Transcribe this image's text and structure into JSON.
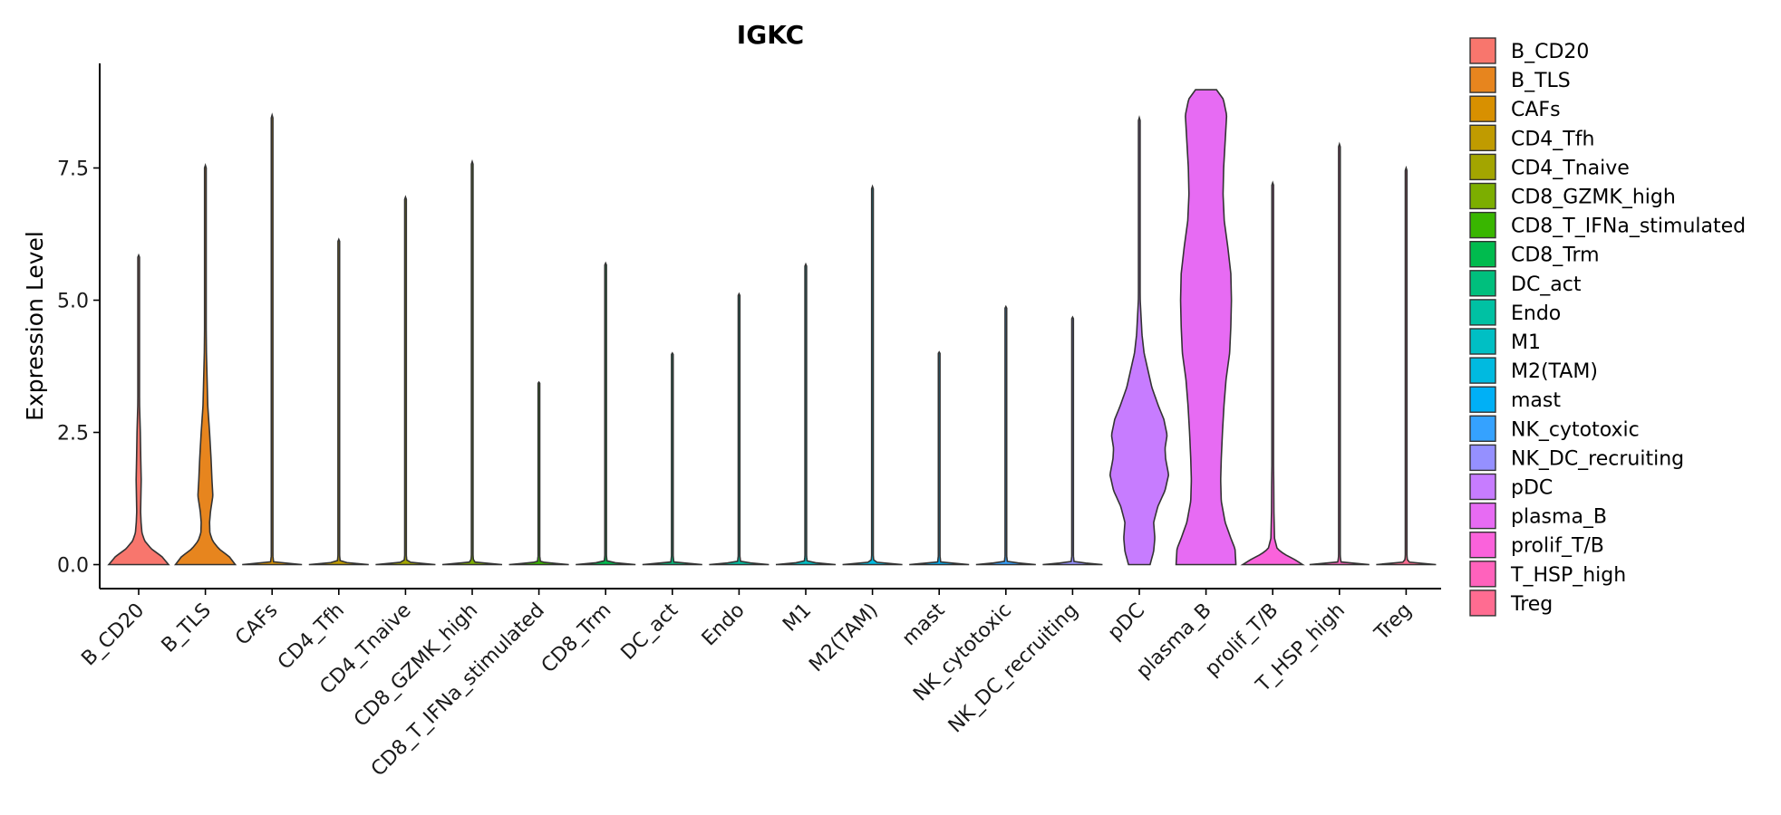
{
  "chart_data": {
    "type": "violin",
    "title": "IGKC",
    "xlabel": "",
    "ylabel": "Expression Level",
    "ylim": [
      -0.35,
      9.4
    ],
    "yticks": [
      0.0,
      2.5,
      5.0,
      7.5
    ],
    "ytick_labels": [
      "0.0",
      "2.5",
      "5.0",
      "7.5"
    ],
    "grid": false,
    "legend_position": "right",
    "categories": [
      "B_CD20",
      "B_TLS",
      "CAFs",
      "CD4_Tfh",
      "CD4_Tnaive",
      "CD8_GZMK_high",
      "CD8_T_IFNa_stimulated",
      "CD8_Trm",
      "DC_act",
      "Endo",
      "M1",
      "M2(TAM)",
      "mast",
      "NK_cytotoxic",
      "NK_DC_recruiting",
      "pDC",
      "plasma_B",
      "prolif_T/B",
      "T_HSP_high",
      "Treg"
    ],
    "series": [
      {
        "name": "B_CD20",
        "color": "#F8766D",
        "max": 5.85,
        "profile": [
          [
            0,
            1.0
          ],
          [
            0.15,
            0.78
          ],
          [
            0.3,
            0.42
          ],
          [
            0.45,
            0.2
          ],
          [
            0.6,
            0.11
          ],
          [
            0.8,
            0.08
          ],
          [
            1.0,
            0.065
          ],
          [
            1.3,
            0.075
          ],
          [
            1.6,
            0.085
          ],
          [
            2.0,
            0.07
          ],
          [
            2.5,
            0.055
          ],
          [
            3.0,
            0.03
          ],
          [
            4.0,
            0.015
          ],
          [
            5.0,
            0.008
          ],
          [
            5.85,
            0.0
          ]
        ]
      },
      {
        "name": "B_TLS",
        "color": "#E7851E",
        "max": 7.55,
        "profile": [
          [
            0,
            1.0
          ],
          [
            0.15,
            0.8
          ],
          [
            0.3,
            0.45
          ],
          [
            0.45,
            0.24
          ],
          [
            0.6,
            0.15
          ],
          [
            0.8,
            0.14
          ],
          [
            1.0,
            0.17
          ],
          [
            1.3,
            0.25
          ],
          [
            1.6,
            0.22
          ],
          [
            2.0,
            0.19
          ],
          [
            2.5,
            0.14
          ],
          [
            3.0,
            0.08
          ],
          [
            4.0,
            0.035
          ],
          [
            5.0,
            0.018
          ],
          [
            6.0,
            0.01
          ],
          [
            7.55,
            0.0
          ]
        ]
      },
      {
        "name": "CAFs",
        "color": "#D89000",
        "max": 8.5,
        "profile": [
          [
            0,
            1.0
          ],
          [
            0.05,
            0.05
          ],
          [
            0.2,
            0.02
          ],
          [
            8.5,
            0.0
          ]
        ]
      },
      {
        "name": "CD4_Tfh",
        "color": "#C09B00",
        "max": 6.15,
        "profile": [
          [
            0,
            1.0
          ],
          [
            0.05,
            0.05
          ],
          [
            0.2,
            0.02
          ],
          [
            6.15,
            0.0
          ]
        ]
      },
      {
        "name": "CD4_Tnaive",
        "color": "#A3A500",
        "max": 6.95,
        "profile": [
          [
            0,
            1.0
          ],
          [
            0.05,
            0.05
          ],
          [
            0.2,
            0.02
          ],
          [
            6.95,
            0.0
          ]
        ]
      },
      {
        "name": "CD8_GZMK_high",
        "color": "#7CAE00",
        "max": 7.62,
        "profile": [
          [
            0,
            1.0
          ],
          [
            0.05,
            0.05
          ],
          [
            0.2,
            0.02
          ],
          [
            7.62,
            0.0
          ]
        ]
      },
      {
        "name": "CD8_T_IFNa_stimulated",
        "color": "#39B600",
        "max": 3.45,
        "profile": [
          [
            0,
            1.0
          ],
          [
            0.05,
            0.05
          ],
          [
            0.2,
            0.02
          ],
          [
            3.45,
            0.0
          ]
        ]
      },
      {
        "name": "CD8_Trm",
        "color": "#00BB4E",
        "max": 5.7,
        "profile": [
          [
            0,
            1.0
          ],
          [
            0.05,
            0.05
          ],
          [
            0.2,
            0.02
          ],
          [
            5.7,
            0.0
          ]
        ]
      },
      {
        "name": "DC_act",
        "color": "#00BF7D",
        "max": 4.0,
        "profile": [
          [
            0,
            1.0
          ],
          [
            0.05,
            0.05
          ],
          [
            0.2,
            0.02
          ],
          [
            4.0,
            0.0
          ]
        ]
      },
      {
        "name": "Endo",
        "color": "#00C1A3",
        "max": 5.12,
        "profile": [
          [
            0,
            1.0
          ],
          [
            0.05,
            0.05
          ],
          [
            0.2,
            0.02
          ],
          [
            5.12,
            0.0
          ]
        ]
      },
      {
        "name": "M1",
        "color": "#00BFC4",
        "max": 5.68,
        "profile": [
          [
            0,
            1.0
          ],
          [
            0.05,
            0.05
          ],
          [
            0.2,
            0.02
          ],
          [
            5.68,
            0.0
          ]
        ]
      },
      {
        "name": "M2(TAM)",
        "color": "#00BAE0",
        "max": 7.15,
        "profile": [
          [
            0,
            1.0
          ],
          [
            0.05,
            0.05
          ],
          [
            0.2,
            0.02
          ],
          [
            7.15,
            0.0
          ]
        ]
      },
      {
        "name": "mast",
        "color": "#00B0F6",
        "max": 4.02,
        "profile": [
          [
            0,
            1.0
          ],
          [
            0.05,
            0.05
          ],
          [
            0.2,
            0.02
          ],
          [
            4.02,
            0.0
          ]
        ]
      },
      {
        "name": "NK_cytotoxic",
        "color": "#35A2FF",
        "max": 4.88,
        "profile": [
          [
            0,
            1.0
          ],
          [
            0.05,
            0.05
          ],
          [
            0.2,
            0.02
          ],
          [
            4.88,
            0.0
          ]
        ]
      },
      {
        "name": "NK_DC_recruiting",
        "color": "#9590FF",
        "max": 4.68,
        "profile": [
          [
            0,
            1.0
          ],
          [
            0.05,
            0.05
          ],
          [
            0.2,
            0.02
          ],
          [
            4.68,
            0.0
          ]
        ]
      },
      {
        "name": "pDC",
        "color": "#C77CFF",
        "max": 8.45,
        "profile": [
          [
            0,
            0.36
          ],
          [
            0.25,
            0.48
          ],
          [
            0.5,
            0.52
          ],
          [
            0.8,
            0.48
          ],
          [
            1.1,
            0.62
          ],
          [
            1.4,
            0.86
          ],
          [
            1.7,
            0.98
          ],
          [
            2.0,
            0.88
          ],
          [
            2.2,
            0.86
          ],
          [
            2.45,
            0.93
          ],
          [
            2.75,
            0.82
          ],
          [
            3.0,
            0.64
          ],
          [
            3.35,
            0.42
          ],
          [
            3.7,
            0.28
          ],
          [
            4.0,
            0.16
          ],
          [
            4.35,
            0.09
          ],
          [
            5.0,
            0.03
          ],
          [
            6.0,
            0.012
          ],
          [
            8.45,
            0.0
          ]
        ]
      },
      {
        "name": "plasma_B",
        "color": "#E76BF3",
        "max": 8.98,
        "profile": [
          [
            0,
            1.0
          ],
          [
            0.3,
            0.97
          ],
          [
            0.5,
            0.83
          ],
          [
            0.8,
            0.64
          ],
          [
            1.2,
            0.51
          ],
          [
            1.6,
            0.49
          ],
          [
            2.0,
            0.51
          ],
          [
            2.5,
            0.55
          ],
          [
            3.0,
            0.6
          ],
          [
            3.5,
            0.67
          ],
          [
            4.0,
            0.79
          ],
          [
            4.5,
            0.83
          ],
          [
            5.0,
            0.85
          ],
          [
            5.5,
            0.83
          ],
          [
            6.0,
            0.73
          ],
          [
            6.5,
            0.61
          ],
          [
            7.0,
            0.57
          ],
          [
            7.5,
            0.59
          ],
          [
            8.0,
            0.64
          ],
          [
            8.5,
            0.69
          ],
          [
            8.8,
            0.58
          ],
          [
            8.98,
            0.35
          ]
        ]
      },
      {
        "name": "prolif_T/B",
        "color": "#FA62DB",
        "max": 7.22,
        "profile": [
          [
            0,
            1.0
          ],
          [
            0.1,
            0.72
          ],
          [
            0.2,
            0.38
          ],
          [
            0.3,
            0.15
          ],
          [
            0.5,
            0.06
          ],
          [
            1.0,
            0.04
          ],
          [
            1.5,
            0.035
          ],
          [
            2.0,
            0.025
          ],
          [
            3.0,
            0.012
          ],
          [
            4.0,
            0.006
          ],
          [
            7.22,
            0.0
          ]
        ]
      },
      {
        "name": "T_HSP_high",
        "color": "#FF62BC",
        "max": 7.95,
        "profile": [
          [
            0,
            1.0
          ],
          [
            0.05,
            0.05
          ],
          [
            0.2,
            0.02
          ],
          [
            7.95,
            0.0
          ]
        ]
      },
      {
        "name": "Treg",
        "color": "#FF6C91",
        "max": 7.5,
        "profile": [
          [
            0,
            1.0
          ],
          [
            0.05,
            0.05
          ],
          [
            0.2,
            0.02
          ],
          [
            7.5,
            0.0
          ]
        ]
      }
    ]
  }
}
